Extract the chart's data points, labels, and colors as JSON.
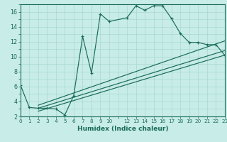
{
  "xlabel": "Humidex (Indice chaleur)",
  "ylabel": "",
  "bg_color": "#c8ece8",
  "line_color": "#1a6b5a",
  "grid_color": "#a8d8d0",
  "xlim": [
    0,
    23
  ],
  "ylim": [
    2,
    17
  ],
  "xtick_vals": [
    0,
    1,
    2,
    3,
    4,
    5,
    6,
    7,
    8,
    9,
    10,
    12,
    13,
    14,
    15,
    16,
    17,
    18,
    19,
    20,
    21,
    22,
    23
  ],
  "ytick_vals": [
    2,
    4,
    6,
    8,
    10,
    12,
    14,
    16
  ],
  "curve_x": [
    0,
    1,
    2,
    3,
    4,
    5,
    6,
    7,
    8,
    9,
    10,
    12,
    13,
    14,
    15,
    16,
    17,
    18,
    19,
    20,
    21,
    22,
    23
  ],
  "curve_y": [
    6.2,
    3.2,
    3.1,
    3.1,
    3.0,
    2.2,
    4.8,
    12.7,
    7.8,
    15.7,
    14.7,
    15.2,
    16.8,
    16.2,
    16.8,
    16.8,
    15.1,
    13.1,
    11.9,
    11.9,
    11.6,
    11.6,
    10.2
  ],
  "line2_x": [
    2,
    23
  ],
  "line2_y": [
    3.5,
    12.1
  ],
  "line3_x": [
    2,
    23
  ],
  "line3_y": [
    3.1,
    10.8
  ],
  "line4_x": [
    2,
    23
  ],
  "line4_y": [
    2.7,
    10.2
  ],
  "title_fontsize": 7.0,
  "xlabel_fontsize": 6.5,
  "tick_fontsize_x": 5.2,
  "tick_fontsize_y": 5.8
}
